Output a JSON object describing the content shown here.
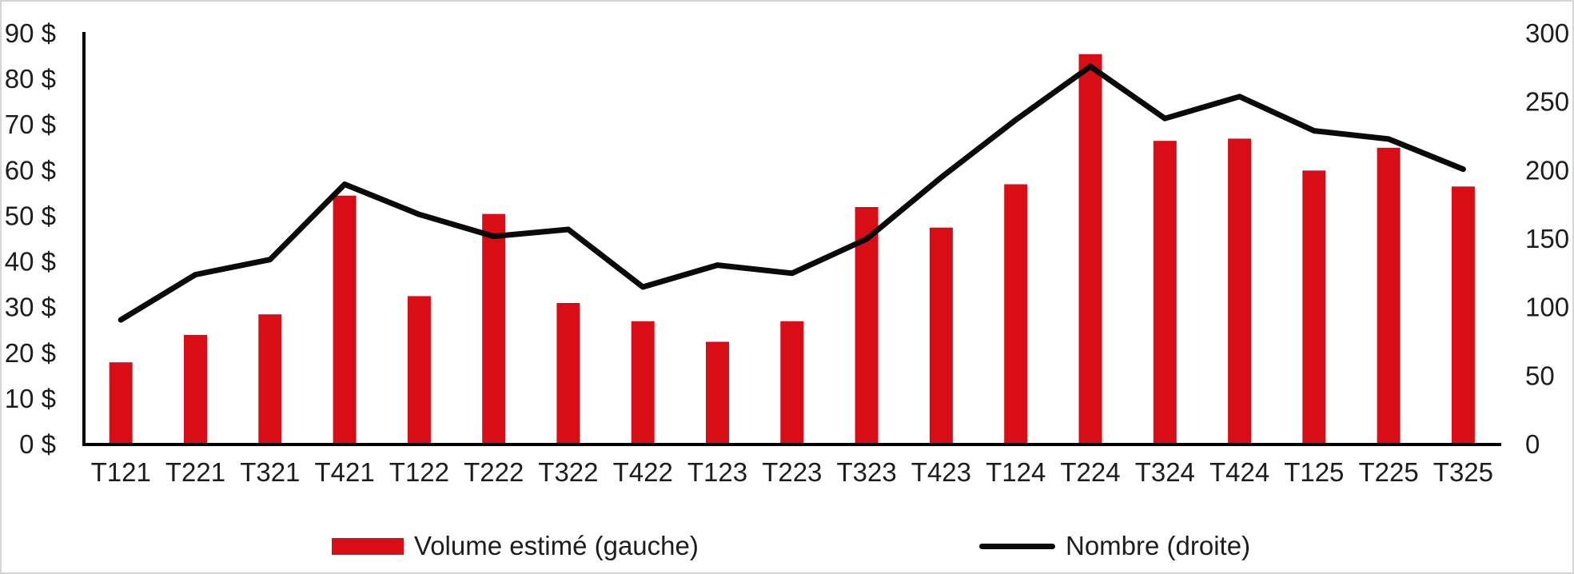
{
  "chart_data": {
    "type": "bar+line",
    "title": "",
    "categories": [
      "T121",
      "T221",
      "T321",
      "T421",
      "T122",
      "T222",
      "T322",
      "T422",
      "T123",
      "T223",
      "T323",
      "T423",
      "T124",
      "T224",
      "T324",
      "T424",
      "T125",
      "T225",
      "T325"
    ],
    "series": [
      {
        "name": "Volume estimé (gauche)",
        "type": "bar",
        "axis": "left",
        "color": "#d90d15",
        "values": [
          18,
          24,
          28.5,
          54.5,
          32.5,
          50.5,
          31,
          27,
          22.5,
          27,
          52,
          47.5,
          57,
          85.5,
          66.5,
          67,
          60,
          65,
          56.5
        ]
      },
      {
        "name": "Nombre (droite)",
        "type": "line",
        "axis": "right",
        "color": "#0a0a0a",
        "values": [
          91,
          124,
          135,
          190,
          168,
          152,
          157,
          115,
          131,
          125,
          150,
          195,
          237,
          276,
          238,
          254,
          229,
          223,
          201
        ]
      }
    ],
    "left_axis": {
      "min": 0,
      "max": 90,
      "tick_step": 10,
      "tick_labels": [
        "0 $",
        "10 $",
        "20 $",
        "30 $",
        "40 $",
        "50 $",
        "60 $",
        "70 $",
        "80 $",
        "90 $"
      ]
    },
    "right_axis": {
      "min": 0,
      "max": 300,
      "tick_step": 50,
      "tick_labels": [
        "0",
        "50",
        "100",
        "150",
        "200",
        "250",
        "300"
      ]
    },
    "grid": false,
    "legend_position": "bottom",
    "axis_color": "#000000",
    "text_color": "#1d1d1d"
  }
}
